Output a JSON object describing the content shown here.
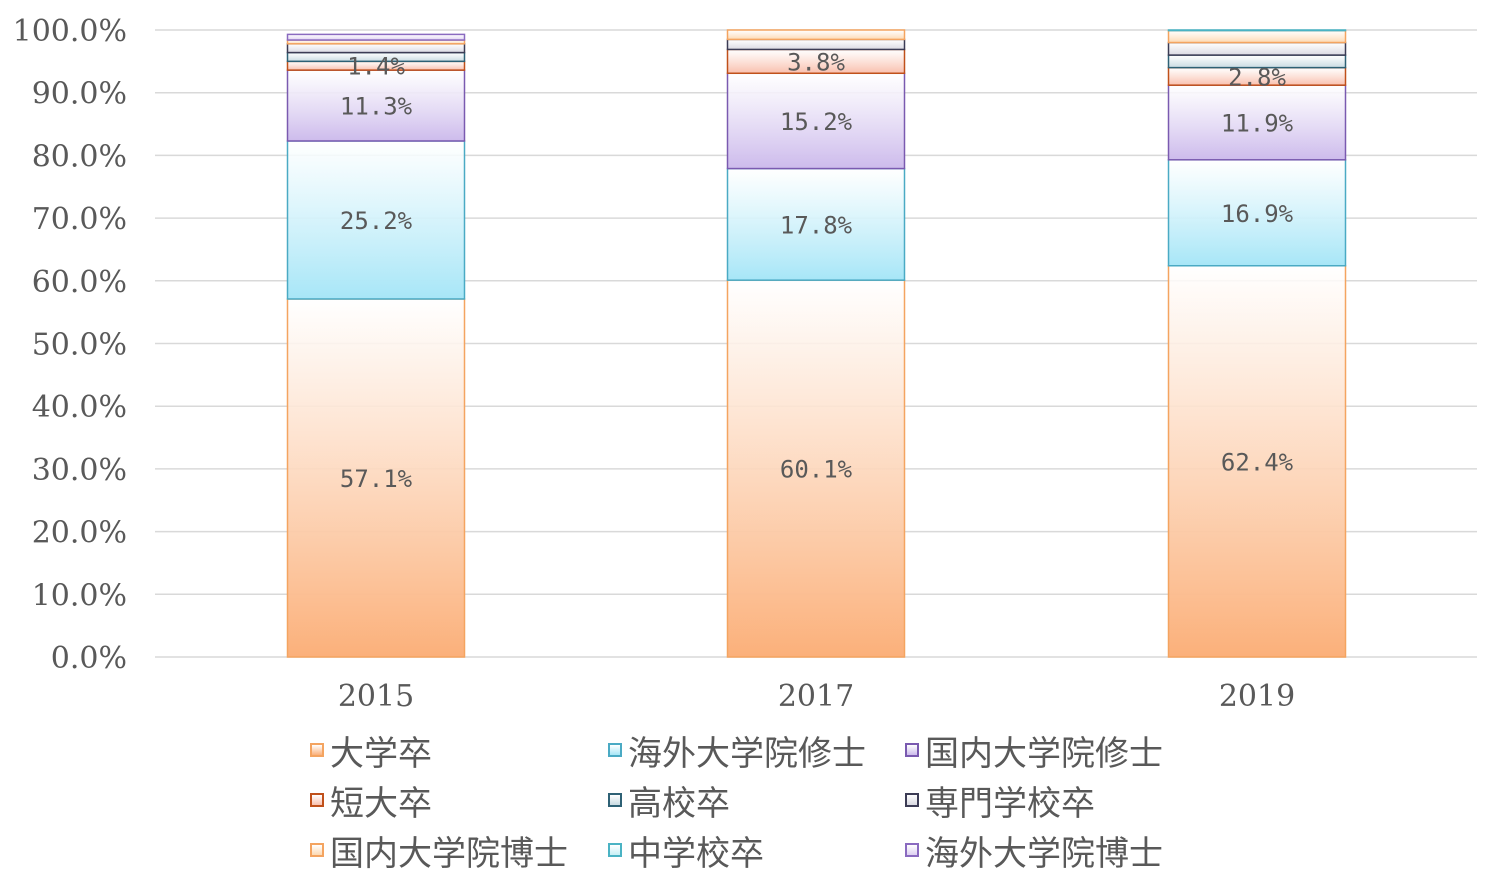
{
  "chart_data": {
    "type": "bar",
    "stacked": true,
    "title": "",
    "xlabel": "",
    "ylabel": "",
    "ylim": [
      0,
      100
    ],
    "y_ticks": [
      "0.0%",
      "10.0%",
      "20.0%",
      "30.0%",
      "40.0%",
      "50.0%",
      "60.0%",
      "70.0%",
      "80.0%",
      "90.0%",
      "100.0%"
    ],
    "grid": true,
    "legend_position": "bottom",
    "categories": [
      "2015",
      "2017",
      "2019"
    ],
    "series": [
      {
        "name": "大学卒",
        "values": [
          57.1,
          60.1,
          62.4
        ],
        "labels": [
          "57.1%",
          "60.1%",
          "62.4%"
        ],
        "color": "#fbb07a",
        "border": "#f4a460"
      },
      {
        "name": "海外大学院修士",
        "values": [
          25.2,
          17.8,
          16.9
        ],
        "labels": [
          "25.2%",
          "17.8%",
          "16.9%"
        ],
        "color": "#a7e6f7",
        "border": "#4aaac4"
      },
      {
        "name": "国内大学院修士",
        "values": [
          11.3,
          15.2,
          11.9
        ],
        "labels": [
          "11.3%",
          "15.2%",
          "11.9%"
        ],
        "color": "#cdbbec",
        "border": "#7a5ab0"
      },
      {
        "name": "短大卒",
        "values": [
          1.4,
          3.8,
          2.8
        ],
        "labels": [
          "1.4%",
          "3.8%",
          "2.8%"
        ],
        "color": "#f9c0ae",
        "border": "#c0501a"
      },
      {
        "name": "高校卒",
        "values": [
          1.4,
          0.0,
          2.0
        ],
        "labels": [
          "",
          "",
          ""
        ],
        "color": "#c9dbe2",
        "border": "#2e6175"
      },
      {
        "name": "専門学校卒",
        "values": [
          1.4,
          1.6,
          2.0
        ],
        "labels": [
          "",
          "",
          ""
        ],
        "color": "#d9d9e2",
        "border": "#3c3c55"
      },
      {
        "name": "国内大学院博士",
        "values": [
          0.6,
          1.5,
          1.9
        ],
        "labels": [
          "",
          "",
          ""
        ],
        "color": "#fdd9b2",
        "border": "#f4a460"
      },
      {
        "name": "中学校卒",
        "values": [
          0.0,
          0.0,
          0.1
        ],
        "labels": [
          "",
          "",
          ""
        ],
        "color": "#c7f0f6",
        "border": "#4ab3c4"
      },
      {
        "name": "海外大学院博士",
        "values": [
          0.9,
          0.0,
          0.0
        ],
        "labels": [
          "",
          "",
          ""
        ],
        "color": "#ddd0f2",
        "border": "#8a6ac0"
      }
    ]
  }
}
